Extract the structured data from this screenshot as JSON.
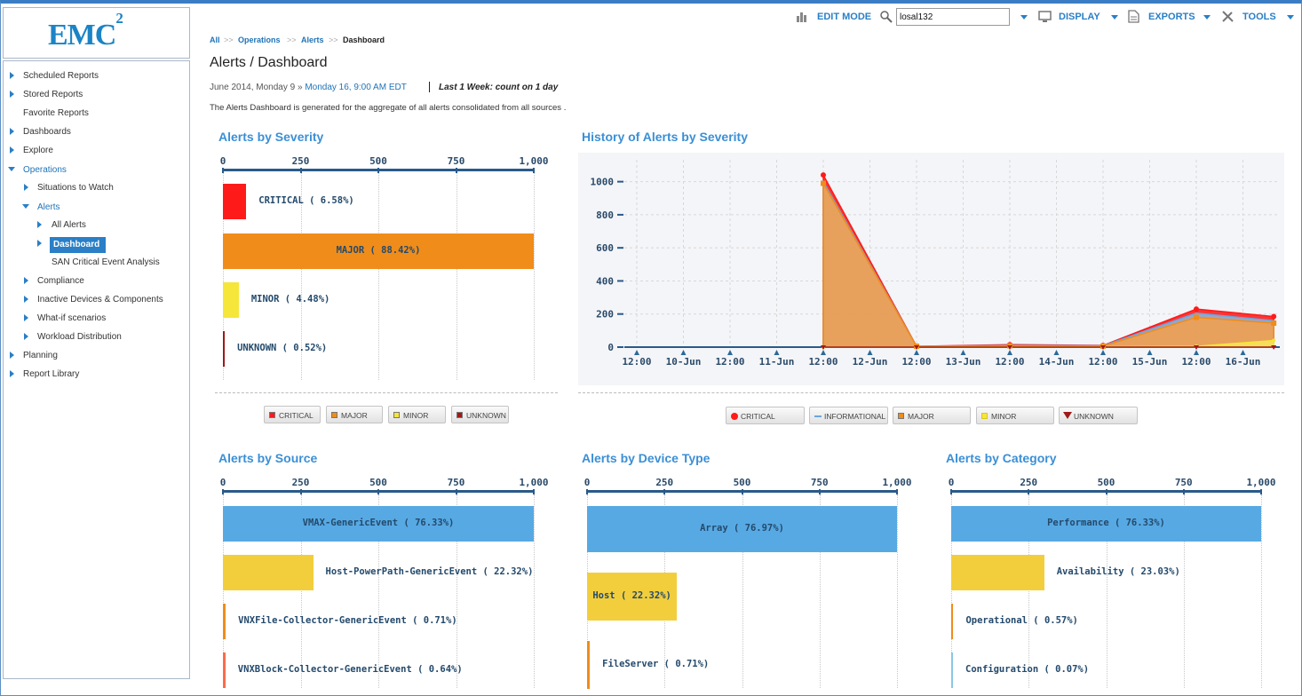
{
  "brand": {
    "logo_text": "EMC",
    "logo_sup": "2"
  },
  "toolbar": {
    "edit_mode": "EDIT MODE",
    "search_value": "losal132",
    "display": "DISPLAY",
    "exports": "EXPORTS",
    "tools": "TOOLS"
  },
  "sidebar": {
    "items": [
      {
        "label": "Scheduled Reports"
      },
      {
        "label": "Stored Reports"
      },
      {
        "label": "Favorite Reports"
      },
      {
        "label": "Dashboards"
      },
      {
        "label": "Explore"
      },
      {
        "label": "Operations"
      },
      {
        "label": "Situations to Watch"
      },
      {
        "label": "Alerts"
      },
      {
        "label": "All Alerts"
      },
      {
        "label": "Dashboard"
      },
      {
        "label": "SAN Critical Event Analysis"
      },
      {
        "label": "Compliance"
      },
      {
        "label": "Inactive Devices & Components"
      },
      {
        "label": "What-if scenarios"
      },
      {
        "label": "Workload Distribution"
      },
      {
        "label": "Planning"
      },
      {
        "label": "Report Library"
      }
    ]
  },
  "breadcrumb": {
    "items": [
      "All",
      "Operations",
      "Alerts",
      "Dashboard"
    ],
    "separator": ">>"
  },
  "header": {
    "title": "Alerts / Dashboard",
    "date_start": "June 2014, Monday 9",
    "date_sep": " » ",
    "date_end": "Monday 16, 9:00 AM EDT",
    "period": "Last 1 Week: count on 1 day",
    "description": "The Alerts Dashboard is generated for the aggregate of all alerts consolidated from all sources ."
  },
  "colors": {
    "critical": "#ff1a1a",
    "major": "#f08c1a",
    "minor": "#f5e639",
    "unknown": "#a01818",
    "blue": "#57a9e3",
    "yellow": "#f2ce3c",
    "informational": "#6aa6e0"
  },
  "chart_data": [
    {
      "type": "bar",
      "title": "Alerts by Severity",
      "ticks": [
        "0",
        "250",
        "500",
        "750",
        "1,000"
      ],
      "xlim": [
        0,
        1000
      ],
      "categories": [
        "CRITICAL",
        "MAJOR",
        "MINOR",
        "UNKNOWN"
      ],
      "values": [
        75,
        1000,
        51,
        6
      ],
      "labels": [
        "CRITICAL ( 6.58%)",
        "MAJOR ( 88.42%)",
        "MINOR ( 4.48%)",
        "UNKNOWN ( 0.52%)"
      ],
      "legend": [
        "CRITICAL",
        "MAJOR",
        "MINOR",
        "UNKNOWN"
      ]
    },
    {
      "type": "area",
      "title": "History of Alerts by Severity",
      "x_ticks": [
        "12:00",
        "10-Jun",
        "12:00",
        "11-Jun",
        "12:00",
        "12-Jun",
        "12:00",
        "13-Jun",
        "12:00",
        "14-Jun",
        "12:00",
        "15-Jun",
        "12:00",
        "16-Jun"
      ],
      "y_ticks": [
        "0",
        "200",
        "400",
        "600",
        "800",
        "1000"
      ],
      "ylim": [
        0,
        1100
      ],
      "x": [
        "12-Jun 00:00",
        "13-Jun 00:00",
        "14-Jun 00:00",
        "15-Jun 00:00",
        "16-Jun 00:00",
        "17-Jun 00:00"
      ],
      "series": [
        {
          "name": "CRITICAL",
          "values": [
            1040,
            5,
            15,
            10,
            230,
            185
          ]
        },
        {
          "name": "INFORMATIONAL",
          "values": [
            1000,
            5,
            10,
            8,
            205,
            160
          ]
        },
        {
          "name": "MAJOR",
          "values": [
            990,
            5,
            8,
            6,
            180,
            145
          ]
        },
        {
          "name": "MINOR",
          "values": [
            0,
            0,
            2,
            2,
            5,
            40
          ]
        },
        {
          "name": "UNKNOWN",
          "values": [
            0,
            0,
            0,
            0,
            0,
            0
          ]
        }
      ],
      "legend": [
        "CRITICAL",
        "INFORMATIONAL",
        "MAJOR",
        "MINOR",
        "UNKNOWN"
      ]
    },
    {
      "type": "bar",
      "title": "Alerts by Source",
      "ticks": [
        "0",
        "250",
        "500",
        "750",
        "1,000"
      ],
      "xlim": [
        0,
        1000
      ],
      "categories": [
        "VMAX-GenericEvent",
        "Host-PowerPath-GenericEvent",
        "VNXFile-Collector-GenericEvent",
        "VNXBlock-Collector-GenericEvent"
      ],
      "values": [
        1000,
        290,
        9,
        8
      ],
      "labels": [
        "VMAX-GenericEvent ( 76.33%)",
        "Host-PowerPath-GenericEvent ( 22.32%)",
        "VNXFile-Collector-GenericEvent ( 0.71%)",
        "VNXBlock-Collector-GenericEvent ( 0.64%)"
      ]
    },
    {
      "type": "bar",
      "title": "Alerts by Device Type",
      "ticks": [
        "0",
        "250",
        "500",
        "750",
        "1,000"
      ],
      "xlim": [
        0,
        1000
      ],
      "categories": [
        "Array",
        "Host",
        "FileServer"
      ],
      "values": [
        1000,
        290,
        9
      ],
      "labels": [
        "Array ( 76.97%)",
        "Host ( 22.32%)",
        "FileServer ( 0.71%)"
      ]
    },
    {
      "type": "bar",
      "title": "Alerts by Category",
      "ticks": [
        "0",
        "250",
        "500",
        "750",
        "1,000"
      ],
      "xlim": [
        0,
        1000
      ],
      "categories": [
        "Performance",
        "Availability",
        "Operational",
        "Configuration"
      ],
      "values": [
        1000,
        300,
        7,
        1
      ],
      "labels": [
        "Performance ( 76.33%)",
        "Availability ( 23.03%)",
        "Operational ( 0.57%)",
        "Configuration ( 0.07%)"
      ]
    }
  ]
}
